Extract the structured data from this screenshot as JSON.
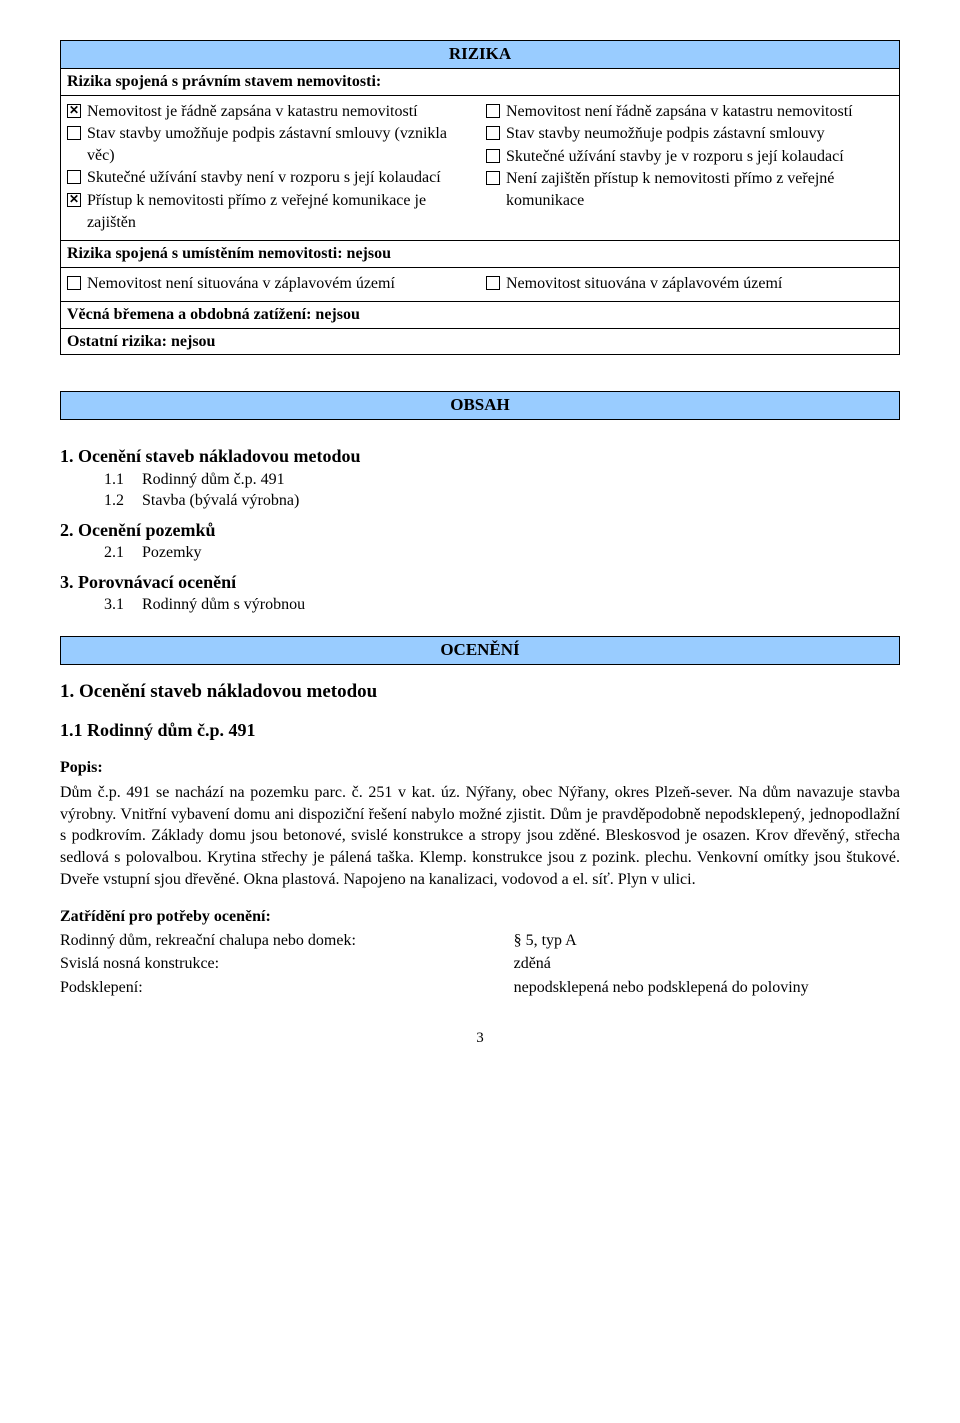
{
  "colors": {
    "header_bg": "#99ccff",
    "border": "#000000",
    "text": "#000000",
    "page_bg": "#ffffff"
  },
  "font": {
    "family": "Times New Roman",
    "body_size_pt": 12,
    "heading_size_pt": 13
  },
  "rizika": {
    "title": "RIZIKA",
    "row1_heading": "Rizika spojená s právním stavem nemovitosti:",
    "left_items": [
      {
        "checked_x": true,
        "text": "Nemovitost je řádně zapsána v katastru nemovitostí"
      },
      {
        "checked_x": false,
        "text": "Stav stavby umožňuje podpis zástavní smlouvy (vznikla věc)"
      },
      {
        "checked_x": false,
        "text": "Skutečné užívání stavby není v rozporu s její kolaudací"
      },
      {
        "checked_x": true,
        "text": "Přístup k nemovitosti přímo z veřejné komunikace je zajištěn"
      }
    ],
    "right_items": [
      {
        "checked_x": false,
        "text": "Nemovitost není řádně zapsána v katastru nemovitostí"
      },
      {
        "checked_x": false,
        "text": "Stav stavby neumožňuje podpis zástavní smlouvy"
      },
      {
        "checked_x": false,
        "text": "Skutečné užívání stavby je v rozporu s její kolaudací"
      },
      {
        "checked_x": false,
        "text": "Není zajištěn přístup k nemovitosti přímo z veřejné komunikace"
      }
    ],
    "row2_heading": "Rizika spojená s umístěním nemovitosti: nejsou",
    "row2_left": [
      {
        "checked_x": false,
        "text": "Nemovitost není situována v záplavovém území"
      }
    ],
    "row2_right": [
      {
        "checked_x": false,
        "text": "Nemovitost situována v záplavovém území"
      }
    ],
    "row3": "Věcná břemena a obdobná zatížení: nejsou",
    "row4": "Ostatní rizika: nejsou"
  },
  "obsah": {
    "title": "OBSAH",
    "items": [
      {
        "lvl": 1,
        "num": "1.",
        "text": "Ocenění staveb nákladovou metodou"
      },
      {
        "lvl": 2,
        "num": "1.1",
        "text": "Rodinný dům č.p. 491"
      },
      {
        "lvl": 2,
        "num": "1.2",
        "text": "Stavba (bývalá výrobna)"
      },
      {
        "lvl": 1,
        "num": "2.",
        "text": "Ocenění pozemků"
      },
      {
        "lvl": 2,
        "num": "2.1",
        "text": "Pozemky"
      },
      {
        "lvl": 1,
        "num": "3.",
        "text": "Porovnávací ocenění"
      },
      {
        "lvl": 2,
        "num": "3.1",
        "text": "Rodinný dům s výrobnou"
      }
    ]
  },
  "oceneni": {
    "title": "OCENĚNÍ",
    "h1": "1. Ocenění staveb nákladovou metodou",
    "h2": "1.1 Rodinný dům č.p. 491",
    "popis_label": "Popis:",
    "popis_body": "Dům č.p. 491 se nachází na pozemku parc. č. 251 v kat. úz. Nýřany, obec Nýřany, okres Plzeň-sever. Na dům navazuje stavba výrobny. Vnitřní vybavení domu ani dispoziční řešení nabylo možné zjistit. Dům je pravděpodobně nepodsklepený, jednopodlažní s podkrovím. Základy domu jsou betonové, svislé konstrukce a stropy jsou zděné. Bleskosvod je osazen. Krov dřevěný, střecha sedlová s polovalbou. Krytina střechy je pálená taška. Klemp. konstrukce jsou z pozink. plechu. Venkovní omítky jsou štukové. Dveře vstupní sjou dřevěné. Okna plastová. Napojeno na kanalizaci, vodovod a el. síť. Plyn v ulici.",
    "zatrideni_label": "Zatřídění pro potřeby ocenění:",
    "zat_rows": [
      {
        "left": "Rodinný dům, rekreační chalupa nebo domek:",
        "right": "§ 5, typ A"
      },
      {
        "left": "Svislá nosná konstrukce:",
        "right": "zděná"
      },
      {
        "left": "Podsklepení:",
        "right": "nepodsklepená nebo podsklepená do poloviny"
      }
    ]
  },
  "page_number": "3"
}
